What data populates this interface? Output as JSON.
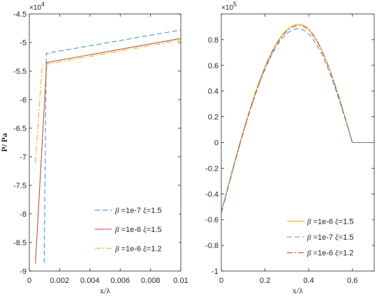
{
  "chart_data": [
    {
      "type": "line",
      "xlabel": "x/λ",
      "ylabel": "P/ Pa",
      "y_exponent_label": "×10",
      "y_exponent_power": "4",
      "xlim": [
        0,
        0.01
      ],
      "ylim": [
        -9,
        -4.5
      ],
      "grid": false,
      "legend_position": "bottom-right",
      "xticks": [
        0,
        0.002,
        0.004,
        0.006,
        0.008,
        0.01
      ],
      "xtick_labels": [
        "0",
        "0.002",
        "0.004",
        "0.006",
        "0.008",
        "0.01"
      ],
      "yticks": [
        -9,
        -8.5,
        -8,
        -7.5,
        -7,
        -6.5,
        -6,
        -5.5,
        -5,
        -4.5
      ],
      "ytick_labels": [
        "-9",
        "-8.5",
        "-8",
        "-7.5",
        "-7",
        "-6.5",
        "-6",
        "-5.5",
        "-5",
        "-4.5"
      ],
      "series": [
        {
          "name": "β =1e-7   ξ=1.5",
          "beta": "1e-7",
          "xi": "1.5",
          "color": "#4a90d9",
          "dash": "7,4",
          "x": [
            0.00098,
            0.00112,
            0.01
          ],
          "y": [
            -8.86,
            -5.19,
            -4.78
          ]
        },
        {
          "name": "β =1e-6   ξ=1.5",
          "beta": "1e-6",
          "xi": "1.5",
          "color": "#c0522c",
          "dash": "",
          "x": [
            0.0004,
            0.00115,
            0.01
          ],
          "y": [
            -8.87,
            -5.35,
            -4.93
          ]
        },
        {
          "name": "β =1e-6   ξ=1.2",
          "beta": "1e-6",
          "xi": "1.2",
          "color": "#edb120",
          "dash": "8,3,2,3",
          "x": [
            0.0004,
            0.00085,
            0.00115,
            0.01
          ],
          "y": [
            -7.1,
            -5.4,
            -5.38,
            -4.96
          ]
        }
      ]
    },
    {
      "type": "line",
      "xlabel": "x/λ",
      "ylabel": "",
      "y_exponent_label": "×10",
      "y_exponent_power": "5",
      "xlim": [
        0,
        0.7
      ],
      "ylim": [
        -1,
        1
      ],
      "grid": false,
      "legend_position": "bottom-right",
      "xticks": [
        0,
        0.2,
        0.4,
        0.6
      ],
      "xtick_labels": [
        "0",
        "0.2",
        "0.4",
        "0.6"
      ],
      "yticks": [
        -1,
        -0.8,
        -0.6,
        -0.4,
        -0.2,
        0,
        0.2,
        0.4,
        0.6,
        0.8
      ],
      "ytick_labels": [
        "-1",
        "-0.8",
        "-0.6",
        "-0.4",
        "-0.2",
        "0",
        "0.2",
        "0.4",
        "0.6",
        "0.8"
      ],
      "series": [
        {
          "name": "β =1e-6   ξ=1.5",
          "beta": "1e-6",
          "xi": "1.5",
          "color": "#edb120",
          "dash": "",
          "peak_x": 0.355,
          "peak_y": 0.92,
          "start_y": -0.54,
          "zero_x": 0.6,
          "end_x": 0.7
        },
        {
          "name": "β =1e-7   ξ=1.5",
          "beta": "1e-7",
          "xi": "1.5",
          "color": "#4a90d9",
          "dash": "7,4",
          "peak_x": 0.352,
          "peak_y": 0.885,
          "start_y": -0.54,
          "zero_x": 0.6,
          "end_x": 0.7
        },
        {
          "name": "β =1e-6   ξ=1.2",
          "beta": "1e-6",
          "xi": "1.2",
          "color": "#c0522c",
          "dash": "8,3,2,3",
          "peak_x": 0.356,
          "peak_y": 0.91,
          "start_y": -0.55,
          "zero_x": 0.6,
          "end_x": 0.7
        }
      ]
    }
  ]
}
